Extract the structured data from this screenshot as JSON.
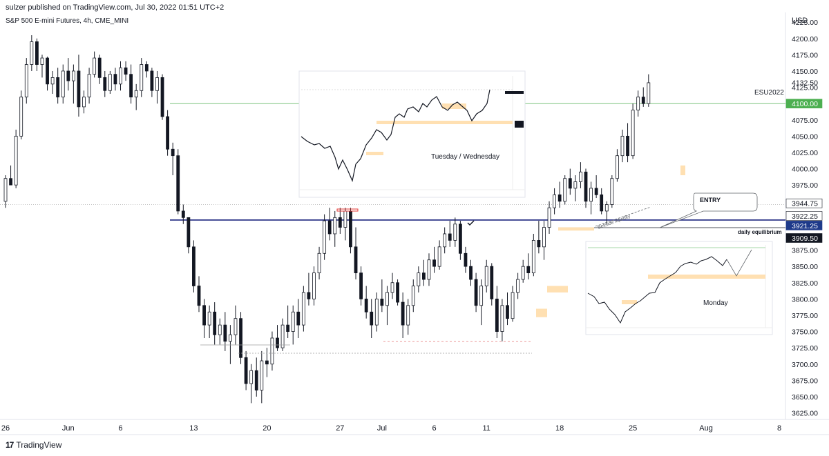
{
  "header": {
    "published": "sulzer published on TradingView.com, Jul 30, 2022 01:51 UTC+2",
    "symbol": "S&P 500 E-mini Futures, 4h, CME_MINI",
    "currency": "USD"
  },
  "footer": {
    "brand": "TradingView"
  },
  "colors": {
    "up": "#ffffff",
    "down": "#131722",
    "blue_line": "#1a237e",
    "green_line": "#4caf50",
    "green_label": "#4caf50",
    "blue_label": "#1e3a8a",
    "dark_label": "#131722",
    "fvg": "#ffe0b2",
    "red_box": "#e53935"
  },
  "chart_data": {
    "type": "candlestick",
    "instrument": "S&P 500 E-mini Futures",
    "timeframe": "4h",
    "contract_label": "ESU2022",
    "x_ticks": [
      {
        "d": 0,
        "label": "26"
      },
      {
        "d": 6,
        "label": "Jun"
      },
      {
        "d": 11,
        "label": "6"
      },
      {
        "d": 18,
        "label": "13"
      },
      {
        "d": 25,
        "label": "20"
      },
      {
        "d": 32,
        "label": "27"
      },
      {
        "d": 36,
        "label": "Jul"
      },
      {
        "d": 41,
        "label": "6"
      },
      {
        "d": 46,
        "label": "11"
      },
      {
        "d": 53,
        "label": "18"
      },
      {
        "d": 60,
        "label": "25"
      },
      {
        "d": 67,
        "label": "Aug"
      },
      {
        "d": 74,
        "label": "8"
      }
    ],
    "x_domain_days": [
      0,
      74
    ],
    "y_ticks": [
      4225,
      4200,
      4175,
      4150,
      4125,
      4100,
      4075,
      4050,
      4025,
      4000,
      3975,
      3950,
      3925,
      3900,
      3875,
      3850,
      3825,
      3800,
      3775,
      3750,
      3725,
      3700,
      3675,
      3650,
      3625
    ],
    "y_tick_labels": [
      "4225.00",
      "4200.00",
      "4175.00",
      "4150.00",
      "4132.50",
      "4125.00",
      "4075.00",
      "4050.00",
      "4025.00",
      "4000.00",
      "3975.00",
      "3950.00",
      "3875.00",
      "3850.00",
      "3825.00",
      "3800.00",
      "3775.00",
      "3750.00",
      "3725.00",
      "3700.00",
      "3675.00",
      "3650.00",
      "3625.00"
    ],
    "ylim": [
      3615,
      4240
    ],
    "price_labels": [
      {
        "value": 4100.0,
        "text": "4100.00",
        "style": "green"
      },
      {
        "value": 3944.75,
        "text": "3944.75",
        "style": "white"
      },
      {
        "value": 3922.25,
        "text": "3922.25",
        "style": "white"
      },
      {
        "value": 3921.25,
        "text": "3921.25",
        "style": "blue"
      },
      {
        "value": 3909.5,
        "text": "3909.50",
        "style": "dark"
      }
    ],
    "horizontal_levels": [
      {
        "name": "daily equilibrium",
        "value": 3921.25
      },
      {
        "name": "green level",
        "value": 4100
      }
    ],
    "annotations": {
      "daily_equilibrium": "daily equilibrium",
      "entry": "ENTRY",
      "sellside_liquidity": "Sellside liquidity"
    },
    "candles": [
      [
        0,
        3950,
        3990,
        3940,
        3985
      ],
      [
        0.5,
        3985,
        4005,
        3975,
        3975
      ],
      [
        1,
        3975,
        4060,
        3970,
        4050
      ],
      [
        1.5,
        4050,
        4120,
        4045,
        4110
      ],
      [
        2,
        4110,
        4170,
        4100,
        4160
      ],
      [
        2.5,
        4160,
        4205,
        4150,
        4195
      ],
      [
        3,
        4195,
        4200,
        4150,
        4160
      ],
      [
        3.5,
        4160,
        4175,
        4140,
        4170
      ],
      [
        4,
        4170,
        4172,
        4120,
        4130
      ],
      [
        4.5,
        4130,
        4150,
        4115,
        4140
      ],
      [
        5,
        4140,
        4155,
        4100,
        4110
      ],
      [
        5.5,
        4110,
        4160,
        4100,
        4150
      ],
      [
        6,
        4150,
        4170,
        4120,
        4135
      ],
      [
        6.5,
        4135,
        4160,
        4100,
        4150
      ],
      [
        7,
        4150,
        4175,
        4080,
        4095
      ],
      [
        7.5,
        4095,
        4120,
        4085,
        4110
      ],
      [
        8,
        4110,
        4155,
        4100,
        4145
      ],
      [
        8.5,
        4145,
        4180,
        4140,
        4170
      ],
      [
        9,
        4170,
        4175,
        4130,
        4140
      ],
      [
        9.5,
        4140,
        4150,
        4110,
        4120
      ],
      [
        10,
        4120,
        4150,
        4115,
        4145
      ],
      [
        10.5,
        4145,
        4155,
        4120,
        4130
      ],
      [
        11,
        4130,
        4165,
        4120,
        4155
      ],
      [
        11.5,
        4155,
        4165,
        4135,
        4145
      ],
      [
        12,
        4145,
        4160,
        4100,
        4110
      ],
      [
        12.5,
        4110,
        4130,
        4090,
        4120
      ],
      [
        13,
        4120,
        4170,
        4110,
        4160
      ],
      [
        13.5,
        4160,
        4165,
        4140,
        4150
      ],
      [
        14,
        4150,
        4155,
        4110,
        4120
      ],
      [
        14.5,
        4120,
        4150,
        4100,
        4140
      ],
      [
        15,
        4140,
        4145,
        4075,
        4080
      ],
      [
        15.5,
        4080,
        4090,
        4020,
        4030
      ],
      [
        16,
        4030,
        4040,
        3990,
        4020
      ],
      [
        16.5,
        4020,
        4030,
        3930,
        3935
      ],
      [
        17,
        3935,
        3945,
        3915,
        3925
      ],
      [
        17.5,
        3925,
        3925,
        3870,
        3880
      ],
      [
        18,
        3880,
        3890,
        3810,
        3820
      ],
      [
        18.5,
        3820,
        3835,
        3780,
        3790
      ],
      [
        19,
        3790,
        3800,
        3740,
        3760
      ],
      [
        19.5,
        3760,
        3790,
        3740,
        3780
      ],
      [
        20,
        3780,
        3795,
        3730,
        3745
      ],
      [
        20.5,
        3745,
        3770,
        3730,
        3760
      ],
      [
        21,
        3760,
        3780,
        3720,
        3735
      ],
      [
        21.5,
        3735,
        3760,
        3700,
        3745
      ],
      [
        22,
        3745,
        3790,
        3730,
        3770
      ],
      [
        22.5,
        3770,
        3780,
        3700,
        3710
      ],
      [
        23,
        3710,
        3720,
        3660,
        3670
      ],
      [
        23.5,
        3670,
        3700,
        3640,
        3690
      ],
      [
        24,
        3690,
        3710,
        3650,
        3660
      ],
      [
        24.5,
        3660,
        3720,
        3640,
        3705
      ],
      [
        25,
        3705,
        3725,
        3680,
        3700
      ],
      [
        25.5,
        3700,
        3750,
        3690,
        3740
      ],
      [
        26,
        3740,
        3760,
        3720,
        3725
      ],
      [
        26.5,
        3725,
        3770,
        3720,
        3760
      ],
      [
        27,
        3760,
        3790,
        3740,
        3750
      ],
      [
        27.5,
        3750,
        3790,
        3730,
        3780
      ],
      [
        28,
        3780,
        3800,
        3740,
        3760
      ],
      [
        28.5,
        3760,
        3820,
        3750,
        3810
      ],
      [
        29,
        3810,
        3840,
        3790,
        3800
      ],
      [
        29.5,
        3800,
        3850,
        3790,
        3840
      ],
      [
        30,
        3840,
        3880,
        3830,
        3870
      ],
      [
        30.5,
        3870,
        3930,
        3860,
        3920
      ],
      [
        31,
        3920,
        3940,
        3890,
        3900
      ],
      [
        31.5,
        3900,
        3935,
        3880,
        3925
      ],
      [
        32,
        3925,
        3940,
        3900,
        3910
      ],
      [
        32.5,
        3910,
        3940,
        3890,
        3935
      ],
      [
        33,
        3935,
        3940,
        3870,
        3880
      ],
      [
        33.5,
        3880,
        3910,
        3830,
        3840
      ],
      [
        34,
        3840,
        3850,
        3790,
        3800
      ],
      [
        34.5,
        3800,
        3820,
        3770,
        3780
      ],
      [
        35,
        3780,
        3800,
        3740,
        3760
      ],
      [
        35.5,
        3760,
        3810,
        3750,
        3800
      ],
      [
        36,
        3800,
        3830,
        3780,
        3790
      ],
      [
        36.5,
        3790,
        3820,
        3760,
        3810
      ],
      [
        37,
        3810,
        3840,
        3800,
        3825
      ],
      [
        37.5,
        3825,
        3830,
        3790,
        3795
      ],
      [
        38,
        3795,
        3810,
        3740,
        3760
      ],
      [
        38.5,
        3760,
        3800,
        3745,
        3790
      ],
      [
        39,
        3790,
        3830,
        3780,
        3820
      ],
      [
        39.5,
        3820,
        3850,
        3810,
        3840
      ],
      [
        40,
        3840,
        3860,
        3820,
        3830
      ],
      [
        40.5,
        3830,
        3870,
        3820,
        3860
      ],
      [
        41,
        3860,
        3880,
        3840,
        3850
      ],
      [
        41.5,
        3850,
        3890,
        3845,
        3880
      ],
      [
        42,
        3880,
        3910,
        3870,
        3900
      ],
      [
        42.5,
        3900,
        3920,
        3880,
        3890
      ],
      [
        43,
        3890,
        3925,
        3880,
        3915
      ],
      [
        43.5,
        3915,
        3920,
        3860,
        3870
      ],
      [
        44,
        3870,
        3880,
        3840,
        3850
      ],
      [
        44.5,
        3850,
        3860,
        3820,
        3830
      ],
      [
        45,
        3830,
        3840,
        3780,
        3790
      ],
      [
        45.5,
        3790,
        3830,
        3760,
        3820
      ],
      [
        46,
        3820,
        3860,
        3810,
        3850
      ],
      [
        46.5,
        3850,
        3855,
        3790,
        3800
      ],
      [
        47,
        3800,
        3820,
        3740,
        3750
      ],
      [
        47.5,
        3750,
        3800,
        3735,
        3790
      ],
      [
        48,
        3790,
        3810,
        3760,
        3770
      ],
      [
        48.5,
        3770,
        3820,
        3765,
        3810
      ],
      [
        49,
        3810,
        3840,
        3800,
        3830
      ],
      [
        49.5,
        3830,
        3860,
        3825,
        3850
      ],
      [
        50,
        3850,
        3870,
        3830,
        3840
      ],
      [
        50.5,
        3840,
        3900,
        3835,
        3890
      ],
      [
        51,
        3890,
        3920,
        3870,
        3880
      ],
      [
        51.5,
        3880,
        3920,
        3860,
        3910
      ],
      [
        52,
        3910,
        3950,
        3900,
        3940
      ],
      [
        52.5,
        3940,
        3970,
        3930,
        3960
      ],
      [
        53,
        3960,
        3980,
        3940,
        3950
      ],
      [
        53.5,
        3950,
        3990,
        3945,
        3985
      ],
      [
        54,
        3985,
        4000,
        3960,
        3970
      ],
      [
        54.5,
        3970,
        3990,
        3950,
        3980
      ],
      [
        55,
        3980,
        4010,
        3970,
        3995
      ],
      [
        55.5,
        3995,
        4000,
        3940,
        3950
      ],
      [
        56,
        3950,
        3980,
        3930,
        3970
      ],
      [
        56.5,
        3970,
        3990,
        3955,
        3960
      ],
      [
        57,
        3960,
        3970,
        3930,
        3935
      ],
      [
        57.5,
        3935,
        3950,
        3915,
        3945
      ],
      [
        58,
        3945,
        3990,
        3940,
        3985
      ],
      [
        58.5,
        3985,
        4030,
        3980,
        4020
      ],
      [
        59,
        4020,
        4060,
        4010,
        4050
      ],
      [
        59.5,
        4050,
        4070,
        4010,
        4020
      ],
      [
        60,
        4020,
        4100,
        4015,
        4090
      ],
      [
        60.5,
        4090,
        4120,
        4080,
        4110
      ],
      [
        61,
        4110,
        4125,
        4095,
        4100
      ],
      [
        61.5,
        4100,
        4145,
        4095,
        4132
      ]
    ]
  },
  "insets": [
    {
      "caption": "Tuesday / Wednesday"
    },
    {
      "caption": "Monday"
    }
  ]
}
